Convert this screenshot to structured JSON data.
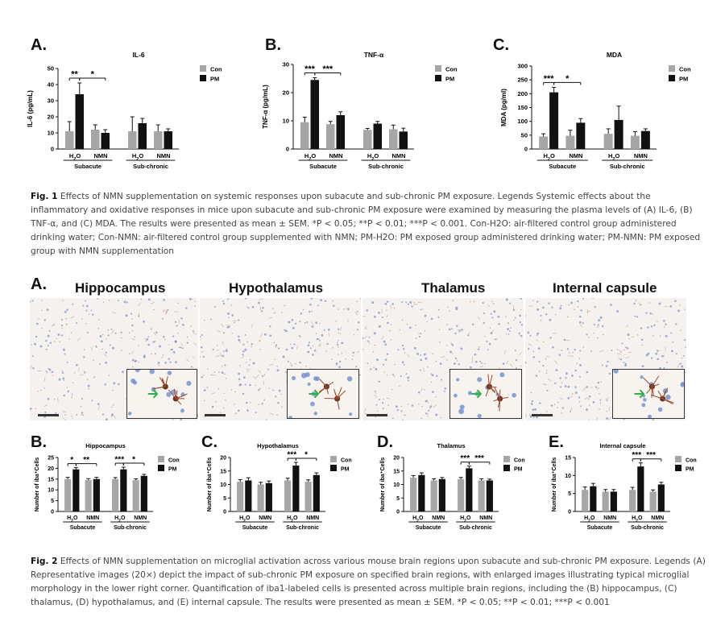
{
  "fig1": {
    "panel_letters": [
      "A.",
      "B.",
      "C."
    ],
    "caption_label": "Fig. 1",
    "caption_text": " Effects of NMN supplementation on systemic responses upon subacute and sub-chronic PM exposure. Legends Systemic effects about the inflammatory and oxidative responses in mice upon subacute and sub-chronic PM exposure were examined by measuring the plasma levels of (A) IL-6, (B) TNF-α, and (C) MDA. The results were presented as mean ± SEM. *P < 0.05; **P < 0.01; ***P < 0.001. Con-H2O: air-filtered control group administered drinking water; Con-NMN: air-filtered control group supplemented with NMN; PM-H2O: PM exposed group administered drinking water; PM-NMN: PM exposed group with NMN supplementation"
  },
  "fig2": {
    "panel_letter_A": "A.",
    "region_labels": [
      "Hippocampus",
      "Hypothalamus",
      "Thalamus",
      "Internal capsule"
    ],
    "panel_letters": [
      "B.",
      "C.",
      "D.",
      "E."
    ],
    "caption_label": "Fig. 2",
    "caption_text": " Effects of NMN supplementation on microglial activation across various mouse brain regions upon subacute and sub-chronic PM exposure. Legends (A) Representative images (20×) depict the impact of sub-chronic PM exposure on specified brain regions, with enlarged images illustrating typical microglial morphology in the lower right corner. Quantification of iba1-labeled cells is presented across multiple brain regions, including the (B) hippocampus, (C) thalamus, (D) hypothalamus, and (E) internal capsule. The results were presented as mean ± SEM. *P < 0.05; **P < 0.01; ***P < 0.001"
  },
  "colors": {
    "con": "#a6a6a6",
    "pm": "#111111",
    "arrow": "#2db34a"
  },
  "chart_data": [
    {
      "type": "bar",
      "title": "IL-6",
      "ylabel": "IL-6 (pg/mL)",
      "ylim": [
        0,
        50
      ],
      "yticks": [
        0,
        10,
        20,
        30,
        40,
        50
      ],
      "categories": [
        "H2O",
        "NMN",
        "H2O",
        "NMN"
      ],
      "groups": [
        "Subacute",
        "Sub-chronic"
      ],
      "series": [
        {
          "name": "Con",
          "values": [
            11,
            12,
            11,
            11
          ],
          "errors": [
            6,
            3,
            9,
            4
          ]
        },
        {
          "name": "PM",
          "values": [
            34,
            10,
            16,
            11
          ],
          "errors": [
            7,
            2,
            3,
            1.5
          ]
        }
      ],
      "annotations": [
        {
          "text": "**",
          "from": 0,
          "to": 1
        },
        {
          "text": "*",
          "from": 1,
          "to": 3
        }
      ]
    },
    {
      "type": "bar",
      "title": "TNF-α",
      "ylabel": "TNF-α (pg/mL)",
      "ylim": [
        0,
        30
      ],
      "yticks": [
        0,
        10,
        20,
        30
      ],
      "categories": [
        "H2O",
        "NMN",
        "H2O",
        "NMN"
      ],
      "groups": [
        "Subacute",
        "Sub-chronic"
      ],
      "series": [
        {
          "name": "Con",
          "values": [
            9.5,
            8.8,
            6.8,
            7
          ],
          "errors": [
            1.8,
            1,
            0.5,
            1.5
          ]
        },
        {
          "name": "PM",
          "values": [
            24.5,
            12,
            9,
            6.2
          ],
          "errors": [
            0.8,
            1.2,
            0.8,
            1.2
          ]
        }
      ],
      "annotations": [
        {
          "text": "***",
          "from": 0,
          "to": 1
        },
        {
          "text": "***",
          "from": 1,
          "to": 3
        }
      ]
    },
    {
      "type": "bar",
      "title": "MDA",
      "ylabel": "MDA (pg/ml)",
      "ylim": [
        0,
        300
      ],
      "yticks": [
        0,
        50,
        100,
        150,
        200,
        250,
        300
      ],
      "categories": [
        "H2O",
        "NMN",
        "H2O",
        "NMN"
      ],
      "groups": [
        "Subacute",
        "Sub-chronic"
      ],
      "series": [
        {
          "name": "Con",
          "values": [
            45,
            48,
            55,
            48
          ],
          "errors": [
            10,
            20,
            18,
            15
          ]
        },
        {
          "name": "PM",
          "values": [
            205,
            95,
            105,
            65
          ],
          "errors": [
            18,
            15,
            50,
            8
          ]
        }
      ],
      "annotations": [
        {
          "text": "***",
          "from": 0,
          "to": 1
        },
        {
          "text": "*",
          "from": 1,
          "to": 3
        }
      ]
    },
    {
      "type": "bar",
      "title": "Hippocampus",
      "ylabel": "Number of iba⁺Cells",
      "ylim": [
        0,
        25
      ],
      "yticks": [
        0,
        5,
        10,
        15,
        20,
        25
      ],
      "categories": [
        "H2O",
        "NMN",
        "H2O",
        "NMN"
      ],
      "groups": [
        "Subacute",
        "Sub-chronic"
      ],
      "series": [
        {
          "name": "Con",
          "values": [
            15,
            14.5,
            15,
            14.5
          ],
          "errors": [
            0.8,
            0.7,
            0.7,
            0.6
          ]
        },
        {
          "name": "PM",
          "values": [
            19.5,
            15,
            19.5,
            16.5
          ],
          "errors": [
            0.8,
            0.8,
            1,
            0.7
          ]
        }
      ],
      "annotations": [
        {
          "text": "*",
          "from": 0,
          "to": 1
        },
        {
          "text": "**",
          "from": 1,
          "to": 3
        },
        {
          "text": "***",
          "from": 4,
          "to": 5
        },
        {
          "text": "*",
          "from": 5,
          "to": 7
        }
      ]
    },
    {
      "type": "bar",
      "title": "Hypothalamus",
      "ylabel": "Number of iba⁺Cells",
      "ylim": [
        0,
        20
      ],
      "yticks": [
        0,
        5,
        10,
        15,
        20
      ],
      "categories": [
        "H2O",
        "NMN",
        "H2O",
        "NMN"
      ],
      "groups": [
        "Subacute",
        "Sub-chronic"
      ],
      "series": [
        {
          "name": "Con",
          "values": [
            11,
            10,
            11.5,
            11
          ],
          "errors": [
            0.8,
            0.8,
            0.8,
            0.7
          ]
        },
        {
          "name": "PM",
          "values": [
            11.5,
            10.5,
            17,
            13.5
          ],
          "errors": [
            1,
            0.8,
            1.2,
            0.8
          ]
        }
      ],
      "annotations": [
        {
          "text": "***",
          "from": 4,
          "to": 5
        },
        {
          "text": "*",
          "from": 5,
          "to": 7
        }
      ]
    },
    {
      "type": "bar",
      "title": "Thalamus",
      "ylabel": "Number of iba⁺Cells",
      "ylim": [
        0,
        20
      ],
      "yticks": [
        0,
        5,
        10,
        15,
        20
      ],
      "categories": [
        "H2O",
        "NMN",
        "H2O",
        "NMN"
      ],
      "groups": [
        "Subacute",
        "Sub-chronic"
      ],
      "series": [
        {
          "name": "Con",
          "values": [
            12.5,
            11.5,
            12,
            11.5
          ],
          "errors": [
            0.8,
            0.6,
            0.6,
            0.6
          ]
        },
        {
          "name": "PM",
          "values": [
            13.5,
            12,
            16,
            11.5
          ],
          "errors": [
            0.8,
            0.6,
            0.8,
            0.5
          ]
        }
      ],
      "annotations": [
        {
          "text": "***",
          "from": 4,
          "to": 5
        },
        {
          "text": "***",
          "from": 5,
          "to": 7
        }
      ]
    },
    {
      "type": "bar",
      "title": "Internal capsule",
      "ylabel": "Number of iba⁺Cells",
      "ylim": [
        0,
        15
      ],
      "yticks": [
        0,
        5,
        10,
        15
      ],
      "categories": [
        "H2O",
        "NMN",
        "H2O",
        "NMN"
      ],
      "groups": [
        "Subacute",
        "Sub-chronic"
      ],
      "series": [
        {
          "name": "Con",
          "values": [
            6,
            5.5,
            6,
            5.5
          ],
          "errors": [
            0.8,
            0.6,
            0.7,
            0.5
          ]
        },
        {
          "name": "PM",
          "values": [
            7,
            5.5,
            12.5,
            7.5
          ],
          "errors": [
            0.8,
            0.6,
            1,
            0.6
          ]
        }
      ],
      "annotations": [
        {
          "text": "***",
          "from": 4,
          "to": 5
        },
        {
          "text": "***",
          "from": 5,
          "to": 7
        }
      ]
    }
  ],
  "legend_labels": [
    "Con",
    "PM"
  ]
}
